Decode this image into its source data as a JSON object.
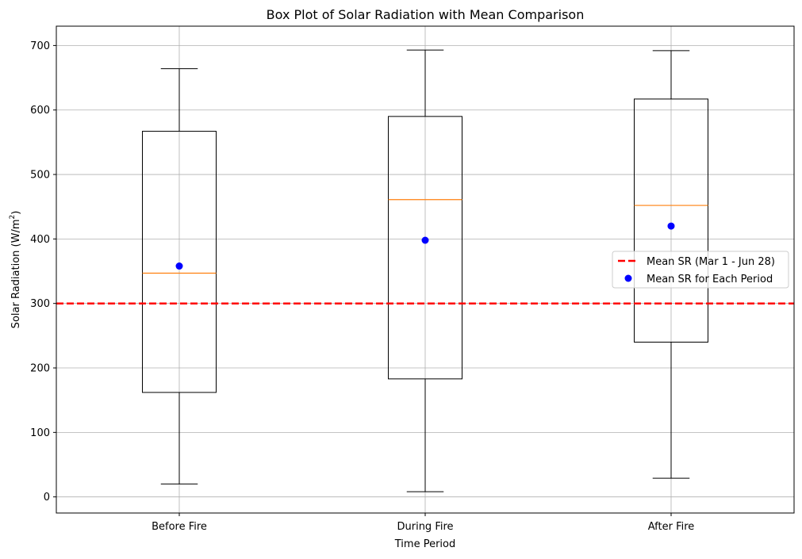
{
  "chart_data": {
    "type": "box",
    "title": "Box Plot of Solar Radiation with Mean Comparison",
    "xlabel": "Time Period",
    "ylabel_main": "Solar Radiation (W/m",
    "ylabel_sup": "2",
    "ylabel_close": ")",
    "ylim": [
      -25,
      730
    ],
    "yticks": [
      0,
      100,
      200,
      300,
      400,
      500,
      600,
      700
    ],
    "grid": true,
    "categories": [
      "Before Fire",
      "During Fire",
      "After Fire"
    ],
    "boxes": [
      {
        "whisker_low": 20,
        "q1": 162,
        "median": 347,
        "q3": 567,
        "whisker_high": 664,
        "mean": 358
      },
      {
        "whisker_low": 8,
        "q1": 183,
        "median": 461,
        "q3": 590,
        "whisker_high": 693,
        "mean": 398
      },
      {
        "whisker_low": 29,
        "q1": 240,
        "median": 452,
        "q3": 617,
        "whisker_high": 692,
        "mean": 420
      }
    ],
    "overall_mean": 300,
    "legend_position": "center-right",
    "legend": [
      {
        "label": "Mean SR (Mar 1 - Jun 28)",
        "kind": "dashed-line",
        "color": "#ff0000"
      },
      {
        "label": "Mean SR for Each Period",
        "kind": "marker",
        "color": "#0000ff"
      }
    ],
    "colors": {
      "box": "#000000",
      "median": "#ff7f0e",
      "mean_marker": "#0000ff",
      "overall_mean_line": "#ff0000",
      "grid": "#b0b0b0"
    }
  }
}
